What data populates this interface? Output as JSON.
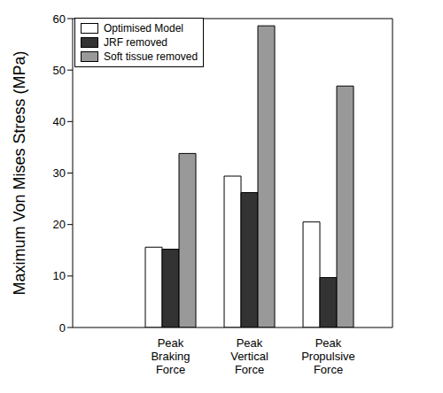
{
  "chart_data": {
    "type": "bar",
    "y_label": "Maximum Von Mises Stress (MPa)",
    "categories": [
      "Peak Braking Force",
      "Peak Vertical Force",
      "Peak Propulsive Force"
    ],
    "series": [
      {
        "name": "Optimised Model",
        "color": "#ffffff",
        "values": [
          15.6,
          29.4,
          20.5
        ]
      },
      {
        "name": "JRF removed",
        "color": "#333333",
        "values": [
          15.2,
          26.2,
          9.7
        ]
      },
      {
        "name": "Soft tissue removed",
        "color": "#999999",
        "values": [
          33.8,
          58.6,
          46.9
        ]
      }
    ],
    "ylim": [
      0,
      60
    ],
    "yticks": [
      0,
      10,
      20,
      30,
      40,
      50,
      60
    ],
    "grid": false,
    "legend": "top-left"
  }
}
